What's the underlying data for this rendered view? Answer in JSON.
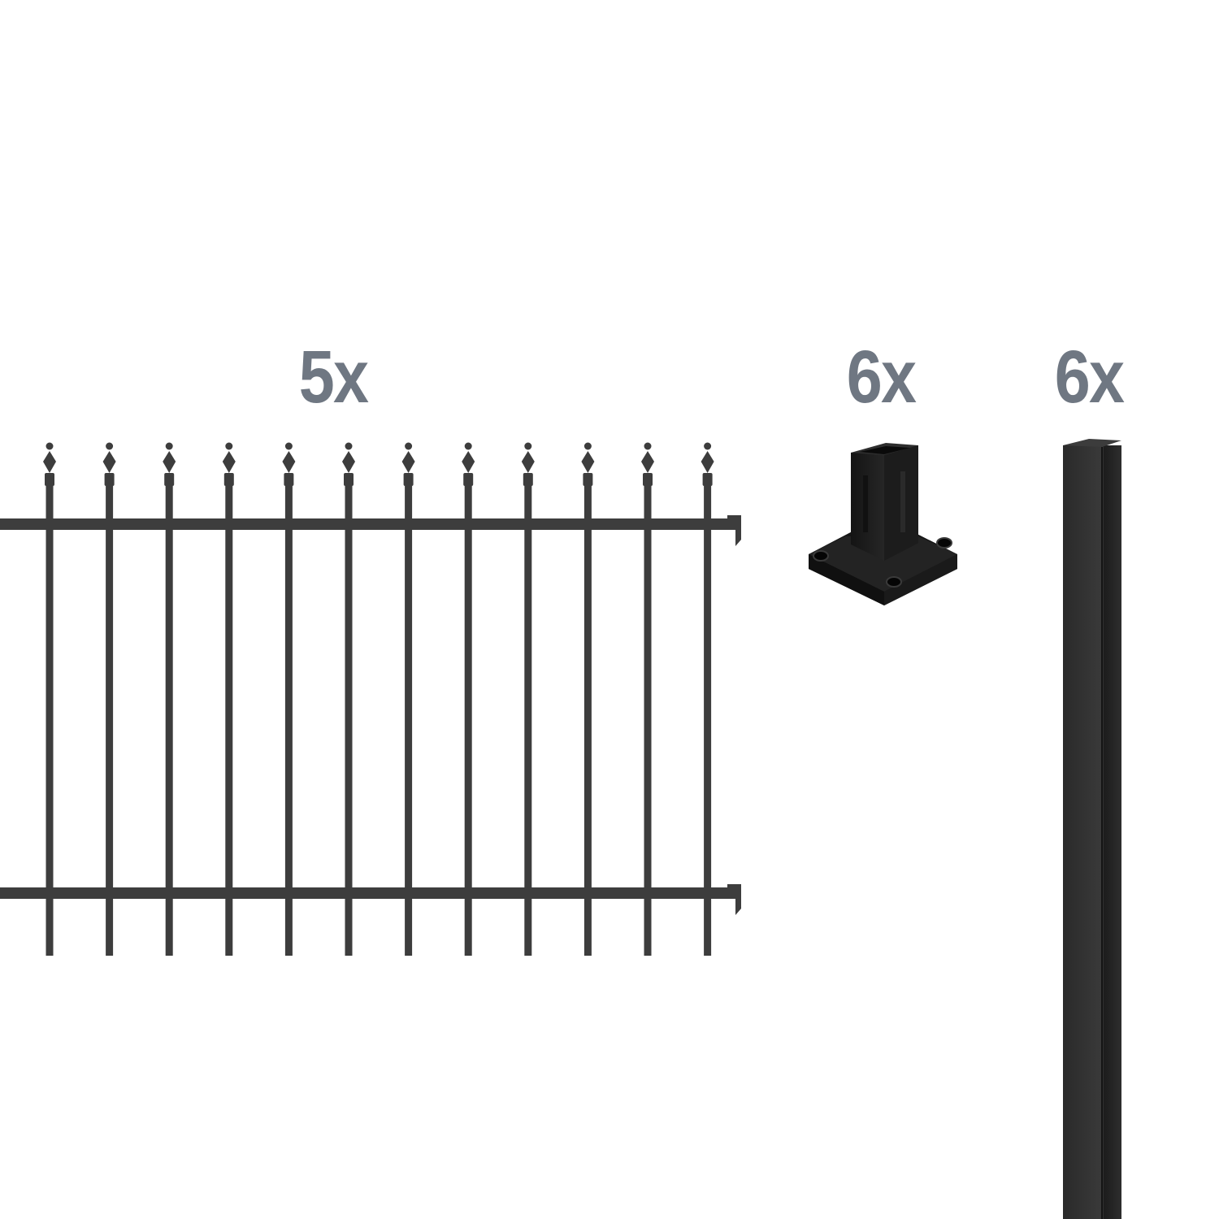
{
  "items": [
    {
      "name": "fence-panel",
      "quantity_label": "5x",
      "color": "#3d3d3d"
    },
    {
      "name": "post-foot-plate",
      "quantity_label": "6x",
      "color": "#1f1f1f"
    },
    {
      "name": "fence-post",
      "quantity_label": "6x",
      "color": "#333333"
    }
  ],
  "label_color": "#6f7782",
  "fence_panel": {
    "spike_count": 12
  }
}
